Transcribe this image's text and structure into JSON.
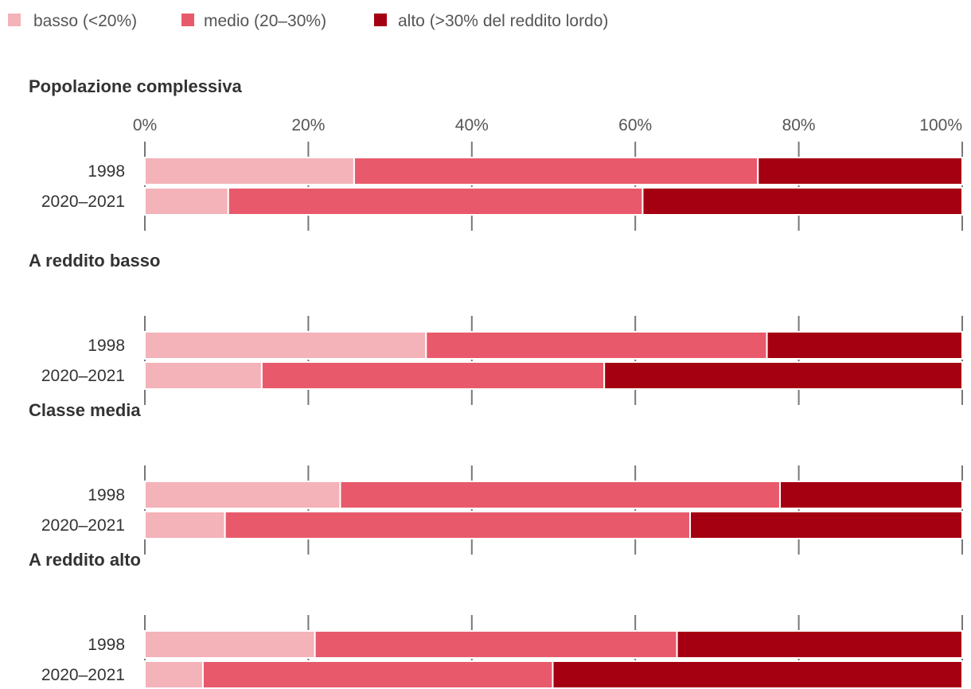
{
  "chart_data": {
    "type": "bar",
    "orientation": "horizontal",
    "stacking": "percent",
    "xlim": [
      0,
      100
    ],
    "x_ticks": [
      "0%",
      "20%",
      "40%",
      "60%",
      "80%",
      "100%"
    ],
    "legend_position": "top-left",
    "grid": false,
    "series": [
      {
        "name": "basso (<20%)",
        "color": "#f4b2b9"
      },
      {
        "name": "medio (20–30%)",
        "color": "#e85a6b"
      },
      {
        "name": "alto (>30% del reddito lordo)",
        "color": "#a50012"
      }
    ],
    "categories": [
      "1998",
      "2020–2021"
    ],
    "panels": [
      {
        "title": "Popolazione complessiva",
        "values": [
          [
            25.6,
            49.4,
            25.0
          ],
          [
            10.2,
            50.7,
            39.1
          ]
        ]
      },
      {
        "title": "A reddito basso",
        "values": [
          [
            34.4,
            41.7,
            23.9
          ],
          [
            14.3,
            41.9,
            43.8
          ]
        ]
      },
      {
        "title": "Classe media",
        "values": [
          [
            23.9,
            53.8,
            22.3
          ],
          [
            9.8,
            56.9,
            33.3
          ]
        ]
      },
      {
        "title": "A reddito alto",
        "values": [
          [
            20.8,
            44.3,
            34.9
          ],
          [
            7.1,
            42.8,
            50.1
          ]
        ]
      }
    ]
  }
}
